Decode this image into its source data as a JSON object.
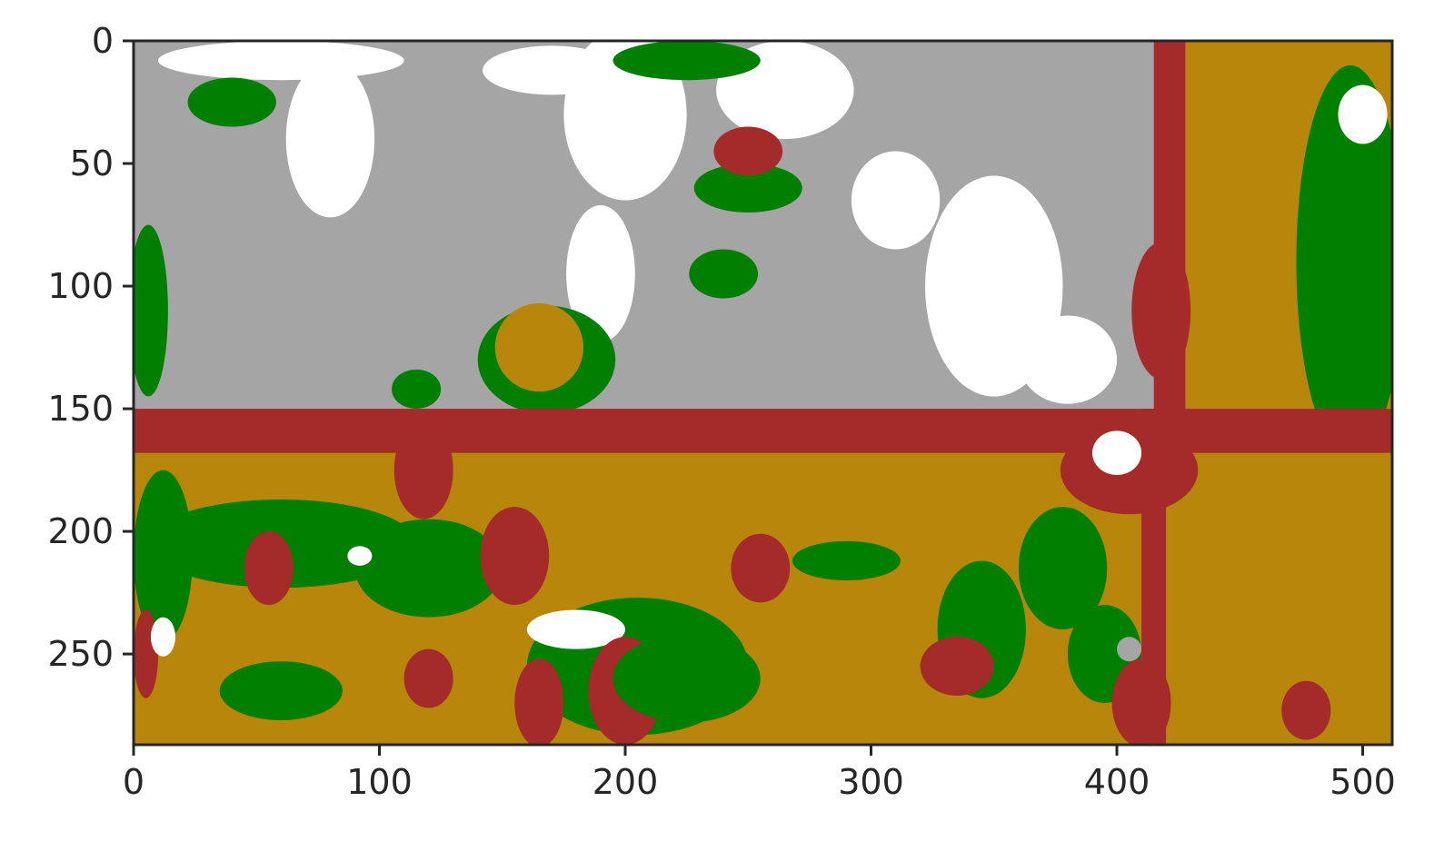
{
  "chart_data": {
    "type": "heatmap",
    "title": "",
    "xlabel": "",
    "ylabel": "",
    "xlim": [
      0,
      512
    ],
    "ylim": [
      287,
      0
    ],
    "x_ticks": [
      0,
      100,
      200,
      300,
      400,
      500
    ],
    "y_ticks": [
      0,
      50,
      100,
      150,
      200,
      250
    ],
    "x_tick_labels": [
      "0",
      "100",
      "200",
      "300",
      "400",
      "500"
    ],
    "y_tick_labels": [
      "0",
      "50",
      "100",
      "150",
      "200",
      "250"
    ],
    "grid": false,
    "legend": "none",
    "classes": [
      {
        "color": "#a5a5a5"
      },
      {
        "color": "#ffffff"
      },
      {
        "color": "#007f00"
      },
      {
        "color": "#a52a2a"
      },
      {
        "color": "#b8860b"
      }
    ],
    "regions": [
      {
        "class": 0,
        "shape": "rect",
        "x0": 0,
        "y0": 0,
        "x1": 415,
        "y1": 150
      },
      {
        "class": 3,
        "shape": "rect",
        "x0": 415,
        "y0": 0,
        "x1": 428,
        "y1": 287
      },
      {
        "class": 4,
        "shape": "rect",
        "x0": 428,
        "y0": 0,
        "x1": 512,
        "y1": 150
      },
      {
        "class": 2,
        "shape": "ellipse",
        "cx": 495,
        "cy": 90,
        "rx": 22,
        "ry": 80
      },
      {
        "class": 1,
        "shape": "ellipse",
        "cx": 60,
        "cy": 8,
        "rx": 50,
        "ry": 8
      },
      {
        "class": 1,
        "shape": "ellipse",
        "cx": 80,
        "cy": 40,
        "rx": 18,
        "ry": 32
      },
      {
        "class": 1,
        "shape": "ellipse",
        "cx": 170,
        "cy": 12,
        "rx": 28,
        "ry": 10
      },
      {
        "class": 1,
        "shape": "ellipse",
        "cx": 200,
        "cy": 30,
        "rx": 25,
        "ry": 35
      },
      {
        "class": 1,
        "shape": "ellipse",
        "cx": 190,
        "cy": 95,
        "rx": 14,
        "ry": 28
      },
      {
        "class": 1,
        "shape": "ellipse",
        "cx": 265,
        "cy": 20,
        "rx": 28,
        "ry": 20
      },
      {
        "class": 1,
        "shape": "ellipse",
        "cx": 310,
        "cy": 65,
        "rx": 18,
        "ry": 20
      },
      {
        "class": 1,
        "shape": "ellipse",
        "cx": 350,
        "cy": 100,
        "rx": 28,
        "ry": 45
      },
      {
        "class": 1,
        "shape": "ellipse",
        "cx": 380,
        "cy": 130,
        "rx": 20,
        "ry": 18
      },
      {
        "class": 1,
        "shape": "ellipse",
        "cx": 500,
        "cy": 30,
        "rx": 10,
        "ry": 12
      },
      {
        "class": 2,
        "shape": "ellipse",
        "cx": 240,
        "cy": 95,
        "rx": 14,
        "ry": 10
      },
      {
        "class": 2,
        "shape": "ellipse",
        "cx": 250,
        "cy": 60,
        "rx": 22,
        "ry": 10
      },
      {
        "class": 2,
        "shape": "ellipse",
        "cx": 40,
        "cy": 25,
        "rx": 18,
        "ry": 10
      },
      {
        "class": 2,
        "shape": "ellipse",
        "cx": 225,
        "cy": 8,
        "rx": 30,
        "ry": 8
      },
      {
        "class": 2,
        "shape": "ellipse",
        "cx": 6,
        "cy": 110,
        "rx": 8,
        "ry": 35
      },
      {
        "class": 2,
        "shape": "ellipse",
        "cx": 115,
        "cy": 142,
        "rx": 10,
        "ry": 8
      },
      {
        "class": 2,
        "shape": "ellipse",
        "cx": 168,
        "cy": 130,
        "rx": 28,
        "ry": 22
      },
      {
        "class": 4,
        "shape": "ellipse",
        "cx": 165,
        "cy": 125,
        "rx": 18,
        "ry": 18
      },
      {
        "class": 3,
        "shape": "ellipse",
        "cx": 250,
        "cy": 45,
        "rx": 14,
        "ry": 10
      },
      {
        "class": 3,
        "shape": "ellipse",
        "cx": 418,
        "cy": 110,
        "rx": 12,
        "ry": 28
      },
      {
        "class": 4,
        "shape": "rect",
        "x0": 0,
        "y0": 165,
        "x1": 512,
        "y1": 287
      },
      {
        "class": 3,
        "shape": "rect",
        "x0": 0,
        "y0": 150,
        "x1": 512,
        "y1": 168
      },
      {
        "class": 3,
        "shape": "ellipse",
        "cx": 405,
        "cy": 175,
        "rx": 28,
        "ry": 18
      },
      {
        "class": 1,
        "shape": "ellipse",
        "cx": 400,
        "cy": 168,
        "rx": 10,
        "ry": 9
      },
      {
        "class": 3,
        "shape": "rect",
        "x0": 410,
        "y0": 150,
        "x1": 420,
        "y1": 287
      },
      {
        "class": 2,
        "shape": "ellipse",
        "cx": 60,
        "cy": 205,
        "rx": 55,
        "ry": 18
      },
      {
        "class": 2,
        "shape": "ellipse",
        "cx": 12,
        "cy": 210,
        "rx": 12,
        "ry": 35
      },
      {
        "class": 3,
        "shape": "ellipse",
        "cx": 55,
        "cy": 215,
        "rx": 10,
        "ry": 15
      },
      {
        "class": 2,
        "shape": "ellipse",
        "cx": 120,
        "cy": 215,
        "rx": 30,
        "ry": 20
      },
      {
        "class": 3,
        "shape": "ellipse",
        "cx": 118,
        "cy": 175,
        "rx": 12,
        "ry": 20
      },
      {
        "class": 3,
        "shape": "ellipse",
        "cx": 155,
        "cy": 210,
        "rx": 14,
        "ry": 20
      },
      {
        "class": 2,
        "shape": "ellipse",
        "cx": 60,
        "cy": 265,
        "rx": 25,
        "ry": 12
      },
      {
        "class": 3,
        "shape": "ellipse",
        "cx": 120,
        "cy": 260,
        "rx": 10,
        "ry": 12
      },
      {
        "class": 2,
        "shape": "ellipse",
        "cx": 205,
        "cy": 255,
        "rx": 45,
        "ry": 28
      },
      {
        "class": 1,
        "shape": "ellipse",
        "cx": 180,
        "cy": 240,
        "rx": 20,
        "ry": 8
      },
      {
        "class": 3,
        "shape": "ellipse",
        "cx": 200,
        "cy": 265,
        "rx": 15,
        "ry": 22
      },
      {
        "class": 3,
        "shape": "ellipse",
        "cx": 165,
        "cy": 270,
        "rx": 10,
        "ry": 18
      },
      {
        "class": 2,
        "shape": "ellipse",
        "cx": 225,
        "cy": 260,
        "rx": 30,
        "ry": 18
      },
      {
        "class": 3,
        "shape": "ellipse",
        "cx": 255,
        "cy": 215,
        "rx": 12,
        "ry": 14
      },
      {
        "class": 2,
        "shape": "ellipse",
        "cx": 290,
        "cy": 212,
        "rx": 22,
        "ry": 8
      },
      {
        "class": 2,
        "shape": "ellipse",
        "cx": 345,
        "cy": 240,
        "rx": 18,
        "ry": 28
      },
      {
        "class": 3,
        "shape": "ellipse",
        "cx": 335,
        "cy": 255,
        "rx": 15,
        "ry": 12
      },
      {
        "class": 2,
        "shape": "ellipse",
        "cx": 378,
        "cy": 215,
        "rx": 18,
        "ry": 25
      },
      {
        "class": 2,
        "shape": "ellipse",
        "cx": 395,
        "cy": 250,
        "rx": 15,
        "ry": 20
      },
      {
        "class": 3,
        "shape": "ellipse",
        "cx": 410,
        "cy": 270,
        "rx": 12,
        "ry": 18
      },
      {
        "class": 0,
        "shape": "ellipse",
        "cx": 405,
        "cy": 248,
        "rx": 5,
        "ry": 5
      },
      {
        "class": 3,
        "shape": "ellipse",
        "cx": 477,
        "cy": 273,
        "rx": 10,
        "ry": 12
      },
      {
        "class": 3,
        "shape": "ellipse",
        "cx": 5,
        "cy": 250,
        "rx": 5,
        "ry": 18
      },
      {
        "class": 1,
        "shape": "ellipse",
        "cx": 12,
        "cy": 243,
        "rx": 5,
        "ry": 8
      },
      {
        "class": 1,
        "shape": "ellipse",
        "cx": 92,
        "cy": 210,
        "rx": 5,
        "ry": 4
      }
    ]
  }
}
